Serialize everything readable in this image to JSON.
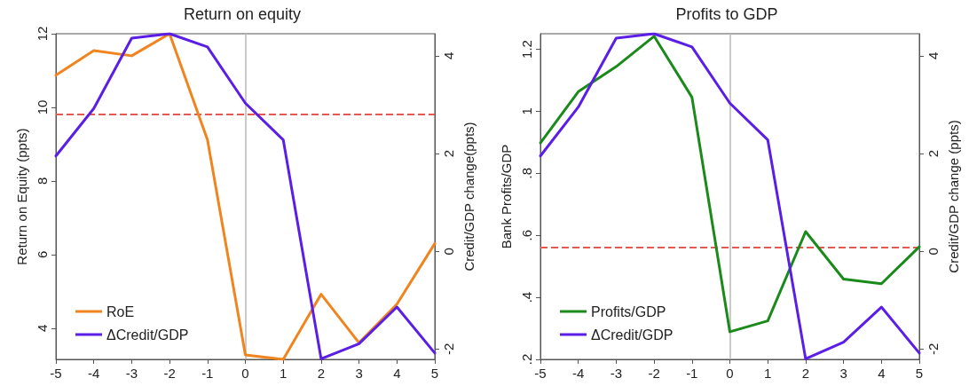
{
  "chart_data": [
    {
      "type": "line",
      "title": "Return on equity",
      "ylabel": "Return on Equity (ppts)",
      "y2label": "Credit/GDP change(ppts)",
      "x": [
        -5,
        -4,
        -3,
        -2,
        -1,
        0,
        1,
        2,
        3,
        4,
        5
      ],
      "series": [
        {
          "name": "RoE",
          "color": "#f0841e",
          "values": [
            10.87,
            11.54,
            11.4,
            12.0,
            9.12,
            3.27,
            3.15,
            4.92,
            3.6,
            4.65,
            6.3
          ]
        },
        {
          "name": "ΔCredit/GDP",
          "color": "#5a1ee6",
          "axis": "y2",
          "values": [
            1.95,
            2.92,
            4.36,
            4.45,
            4.18,
            3.03,
            2.28,
            -2.2,
            -1.89,
            -1.14,
            -2.08
          ]
        }
      ],
      "xlim": [
        -5,
        5
      ],
      "xticks": [
        -5,
        -4,
        -3,
        -2,
        -1,
        0,
        1,
        2,
        3,
        4,
        5
      ],
      "ylim": [
        3.15,
        12
      ],
      "yticks": [
        4,
        6,
        8,
        10,
        12
      ],
      "y2lim": [
        -2.21,
        4.45
      ],
      "y2ticks": [
        -2,
        0,
        2,
        4
      ],
      "ref_lines": [
        {
          "axis": "y",
          "value": 9.81,
          "color": "#e8584e",
          "line_style": "dashed"
        },
        {
          "axis": "x",
          "value": 0,
          "color": "#b8b8b8",
          "line_style": "solid"
        }
      ],
      "legend": "bottom left",
      "grid": false,
      "marker": "none",
      "line_style": "solid"
    },
    {
      "type": "line",
      "title": "Profits to GDP",
      "ylabel": "Bank Profits/GDP",
      "y2label": "Credit/GDP change (ppts)",
      "x": [
        -5,
        -4,
        -3,
        -2,
        -1,
        0,
        1,
        2,
        3,
        4,
        5
      ],
      "series": [
        {
          "name": "Profits/GDP",
          "color": "#1a8a1a",
          "values": [
            0.898,
            1.063,
            1.144,
            1.242,
            1.045,
            0.289,
            0.324,
            0.612,
            0.459,
            0.444,
            0.563
          ]
        },
        {
          "name": "ΔCredit/GDP",
          "color": "#5a1ee6",
          "axis": "y2",
          "values": [
            1.95,
            2.95,
            4.36,
            4.45,
            4.18,
            3.03,
            2.28,
            -2.2,
            -1.86,
            -1.14,
            -2.08
          ]
        }
      ],
      "xlim": [
        -5,
        5
      ],
      "xticks": [
        -5,
        -4,
        -3,
        -2,
        -1,
        0,
        1,
        2,
        3,
        4,
        5
      ],
      "ylim": [
        0.2,
        1.25
      ],
      "yticks": [
        {
          "value": 0.2,
          "label": ".2"
        },
        {
          "value": 0.4,
          "label": ".4"
        },
        {
          "value": 0.6,
          "label": ".6"
        },
        {
          "value": 0.8,
          "label": ".8"
        },
        1,
        {
          "value": 1.2,
          "label": "1.2"
        }
      ],
      "y2lim": [
        -2.21,
        4.45
      ],
      "y2ticks": [
        -2,
        0,
        2,
        4
      ],
      "ref_lines": [
        {
          "axis": "y",
          "value": 0.563,
          "color": "#e8584e",
          "line_style": "dashed"
        },
        {
          "axis": "x",
          "value": 0,
          "color": "#b8b8b8",
          "line_style": "solid"
        }
      ],
      "legend": "bottom left",
      "grid": false,
      "marker": "none",
      "line_style": "solid"
    }
  ]
}
